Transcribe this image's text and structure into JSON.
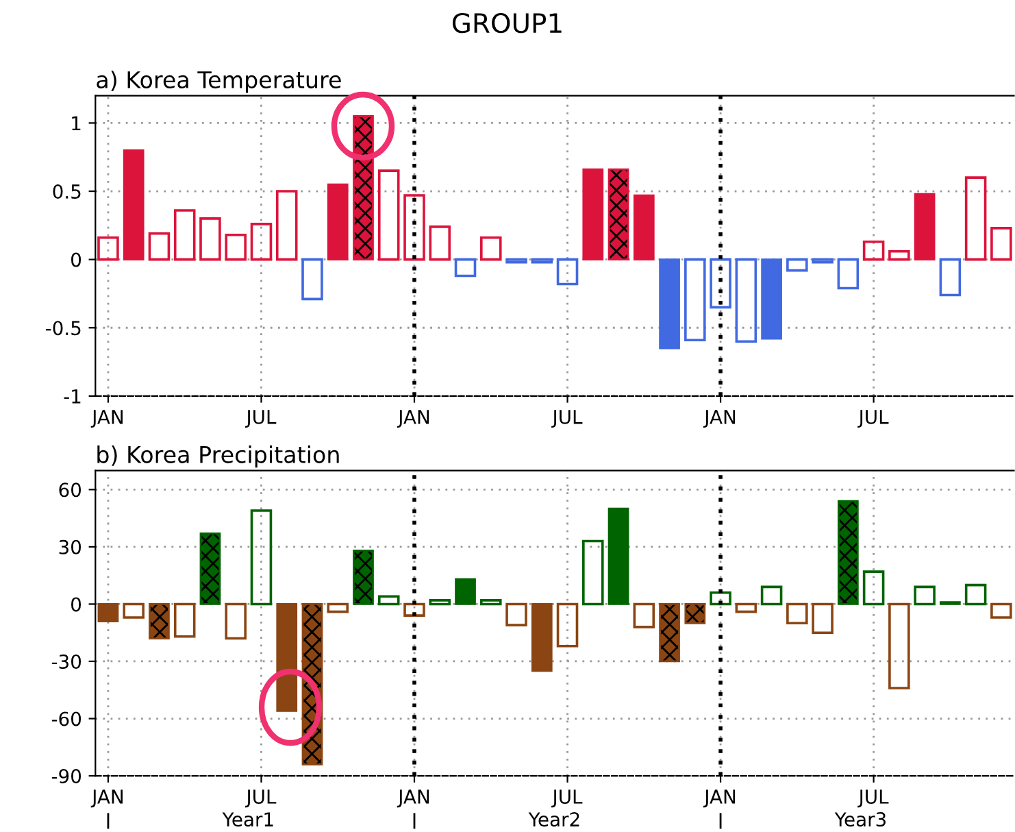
{
  "chart_data": [
    {
      "type": "bar",
      "title": "GROUP1",
      "subtitle": "a) Korea Temperature",
      "categories": [
        "JAN",
        null,
        null,
        null,
        null,
        null,
        "JUL",
        null,
        null,
        null,
        null,
        null,
        "JAN",
        null,
        null,
        null,
        null,
        null,
        "JUL",
        null,
        null,
        null,
        null,
        null,
        "JAN",
        null,
        null,
        null,
        null,
        null,
        "JUL",
        null,
        null,
        null,
        null,
        null
      ],
      "series": [
        {
          "values": [
            null,
            0.8,
            null,
            null,
            null,
            null,
            null,
            null,
            null,
            0.55,
            null,
            null,
            null,
            null,
            null,
            null,
            null,
            null,
            null,
            0.66,
            null,
            0.47,
            -0.65,
            null,
            null,
            null,
            -0.58,
            null,
            null,
            null,
            null,
            null,
            0.48,
            null,
            null,
            null
          ],
          "colors": [
            null,
            "#dc143c",
            null,
            null,
            null,
            null,
            null,
            null,
            null,
            "#dc143c",
            null,
            null,
            null,
            null,
            null,
            null,
            null,
            null,
            null,
            "#dc143c",
            null,
            "#dc143c",
            "#4169e1",
            null,
            null,
            null,
            "#4169e1",
            null,
            null,
            null,
            null,
            null,
            "#dc143c",
            null,
            null,
            null
          ]
        },
        {
          "values": [
            0.16,
            null,
            0.19,
            0.36,
            0.3,
            0.18,
            0.26,
            0.5,
            -0.29,
            null,
            null,
            0.65,
            0.47,
            0.24,
            -0.12,
            0.16,
            -0.02,
            -0.02,
            -0.18,
            null,
            null,
            null,
            null,
            -0.59,
            -0.35,
            -0.6,
            null,
            -0.08,
            -0.02,
            -0.21,
            0.13,
            0.06,
            null,
            -0.26,
            0.6,
            0.23
          ],
          "colors": [
            "#dc143c",
            null,
            "#dc143c",
            "#dc143c",
            "#dc143c",
            "#dc143c",
            "#dc143c",
            "#dc143c",
            "#4169e1",
            null,
            null,
            "#dc143c",
            "#dc143c",
            "#dc143c",
            "#4169e1",
            "#dc143c",
            "#4169e1",
            "#4169e1",
            "#4169e1",
            null,
            null,
            null,
            null,
            "#4169e1",
            "#4169e1",
            "#4169e1",
            null,
            "#4169e1",
            "#4169e1",
            "#4169e1",
            "#dc143c",
            "#dc143c",
            null,
            "#4169e1",
            "#dc143c",
            "#dc143c"
          ]
        },
        {
          "values": [
            null,
            null,
            null,
            null,
            null,
            null,
            null,
            null,
            null,
            null,
            1.05,
            null,
            null,
            null,
            null,
            null,
            null,
            null,
            null,
            null,
            0.66,
            null,
            null,
            null,
            null,
            null,
            null,
            null,
            null,
            null,
            null,
            null,
            null,
            null,
            null,
            null
          ],
          "colors": [
            null,
            null,
            null,
            null,
            null,
            null,
            null,
            null,
            null,
            null,
            "#dc143c",
            null,
            null,
            null,
            null,
            null,
            null,
            null,
            null,
            null,
            "#dc143c",
            null,
            null,
            null,
            null,
            null,
            null,
            null,
            null,
            null,
            null,
            null,
            null,
            null,
            null,
            null
          ]
        }
      ],
      "ylim": [
        -1,
        1.2
      ],
      "yticks": [
        {
          "value": -1,
          "label": "-1"
        },
        {
          "value": -0.5,
          "label": "-0.5"
        },
        0,
        0.5,
        1
      ],
      "grid": true
    },
    {
      "type": "bar",
      "subtitle": "b) Korea Precipitation",
      "categories": [
        "JAN",
        null,
        null,
        null,
        null,
        null,
        "JUL",
        null,
        null,
        null,
        null,
        null,
        "JAN",
        null,
        null,
        null,
        null,
        null,
        "JUL",
        null,
        null,
        null,
        null,
        null,
        "JAN",
        null,
        null,
        null,
        null,
        null,
        "JUL",
        null,
        null,
        null,
        null,
        null
      ],
      "series": [
        {
          "values": [
            -9,
            null,
            null,
            null,
            null,
            null,
            null,
            -56,
            null,
            null,
            null,
            null,
            null,
            null,
            13,
            null,
            null,
            -35,
            null,
            null,
            50,
            null,
            null,
            null,
            null,
            null,
            null,
            null,
            null,
            null,
            null,
            null,
            null,
            1,
            null,
            null
          ],
          "colors": [
            "#8b4513",
            null,
            null,
            null,
            null,
            null,
            null,
            "#8b4513",
            null,
            null,
            null,
            null,
            null,
            null,
            "#006400",
            null,
            null,
            "#8b4513",
            null,
            null,
            "#006400",
            null,
            null,
            null,
            null,
            null,
            null,
            null,
            null,
            null,
            null,
            null,
            null,
            "#006400",
            null,
            null
          ]
        },
        {
          "values": [
            null,
            -7,
            null,
            -17,
            null,
            -18,
            49,
            null,
            null,
            -4,
            null,
            4,
            -6,
            2,
            null,
            2,
            -11,
            null,
            -22,
            33,
            null,
            -12,
            null,
            null,
            6,
            -4,
            9,
            -10,
            -15,
            null,
            17,
            -44,
            9,
            null,
            10,
            -7
          ],
          "colors": [
            null,
            "#8b4513",
            null,
            "#8b4513",
            null,
            "#8b4513",
            "#006400",
            null,
            null,
            "#8b4513",
            null,
            "#006400",
            "#8b4513",
            "#006400",
            null,
            "#006400",
            "#8b4513",
            null,
            "#8b4513",
            "#006400",
            null,
            "#8b4513",
            null,
            null,
            "#006400",
            "#8b4513",
            "#006400",
            "#8b4513",
            "#8b4513",
            null,
            "#006400",
            "#8b4513",
            "#006400",
            null,
            "#006400",
            "#8b4513"
          ]
        },
        {
          "values": [
            null,
            null,
            -18,
            null,
            37,
            null,
            null,
            null,
            -84,
            null,
            28,
            null,
            null,
            null,
            null,
            null,
            null,
            null,
            null,
            null,
            null,
            null,
            -30,
            -10,
            null,
            null,
            null,
            null,
            null,
            54,
            null,
            null,
            null,
            null,
            null,
            null
          ],
          "colors": [
            null,
            null,
            "#8b4513",
            null,
            "#006400",
            null,
            null,
            null,
            "#8b4513",
            null,
            "#006400",
            null,
            null,
            null,
            null,
            null,
            null,
            null,
            null,
            null,
            null,
            null,
            "#8b4513",
            "#8b4513",
            null,
            null,
            null,
            null,
            null,
            "#006400",
            null,
            null,
            null,
            null,
            null,
            null
          ]
        }
      ],
      "annotations": [
        "Year1",
        "Year2",
        "Year3"
      ],
      "ylim": [
        -90,
        70
      ],
      "yticks": [
        {
          "value": -90,
          "label": "-90"
        },
        {
          "value": -60,
          "label": "-60"
        },
        {
          "value": -30,
          "label": "-30"
        },
        0,
        30,
        60
      ],
      "grid": true
    }
  ]
}
